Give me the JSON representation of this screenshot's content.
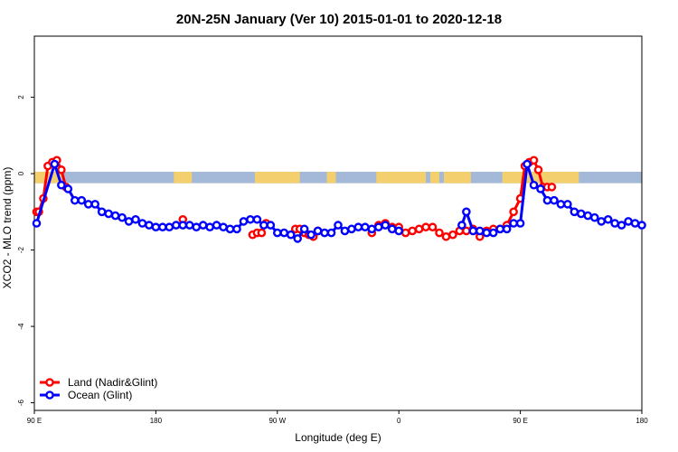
{
  "chart_data": {
    "type": "line",
    "title": "20N-25N January (Ver 10)   2015-01-01 to 2020-12-18",
    "xlabel": "Longitude (deg E)",
    "ylabel": "XCO2 - MLO trend (ppm)",
    "xlim": [
      -90,
      180
    ],
    "ylim": [
      -6.2,
      3.6
    ],
    "x_ticks": [
      {
        "value": -90,
        "label": "90 E"
      },
      {
        "value": -36,
        "label": "180"
      },
      {
        "value": 18,
        "label": "90 W"
      },
      {
        "value": 72,
        "label": "0"
      },
      {
        "value": 126,
        "label": "90 E"
      },
      {
        "value": 180,
        "label": "180"
      }
    ],
    "y_ticks": [
      {
        "value": 2,
        "label": "2"
      },
      {
        "value": 0,
        "label": "0"
      },
      {
        "value": -2,
        "label": "-2"
      },
      {
        "value": -4,
        "label": "-4"
      },
      {
        "value": -6,
        "label": "-6"
      }
    ],
    "grid": false,
    "legend_position": "bottom-left",
    "band": {
      "y_min": -0.25,
      "y_max": 0.05,
      "ocean_color": "#a4b9d8",
      "land_color": "#f3cf6e"
    },
    "series": [
      {
        "name": "Land (Nadir&Glint)",
        "color": "#ff0000",
        "x": [
          -89,
          -88,
          -86,
          -84,
          -82,
          -80,
          -78,
          -76,
          -24,
          7,
          9,
          11,
          13,
          26,
          28,
          30,
          32,
          34,
          36,
          60,
          63,
          66,
          69,
          72,
          75,
          78,
          81,
          84,
          87,
          90,
          93,
          96,
          99,
          102,
          105,
          108,
          111,
          114,
          117,
          120,
          123,
          126,
          128,
          130,
          132,
          134,
          136,
          138,
          140
        ],
        "y": [
          -1.0,
          -1.0,
          -0.65,
          0.2,
          0.3,
          0.35,
          0.1,
          -0.35,
          -1.2,
          -1.6,
          -1.55,
          -1.55,
          -1.3,
          -1.45,
          -1.45,
          -1.55,
          -1.6,
          -1.65,
          -1.5,
          -1.55,
          -1.35,
          -1.3,
          -1.4,
          -1.4,
          -1.55,
          -1.5,
          -1.45,
          -1.4,
          -1.4,
          -1.55,
          -1.65,
          -1.6,
          -1.5,
          -1.5,
          -1.45,
          -1.65,
          -1.5,
          -1.45,
          -1.45,
          -1.35,
          -1.0,
          -0.65,
          0.2,
          0.3,
          0.35,
          0.1,
          -0.35,
          -0.35,
          -0.35
        ]
      },
      {
        "name": "Ocean (Glint)",
        "color": "#0000ff",
        "x": [
          -89,
          -81,
          -78,
          -75,
          -72,
          -69,
          -66,
          -63,
          -60,
          -57,
          -54,
          -51,
          -48,
          -45,
          -42,
          -39,
          -36,
          -33,
          -30,
          -27,
          -24,
          -21,
          -18,
          -15,
          -12,
          -9,
          -6,
          -3,
          0,
          3,
          6,
          9,
          12,
          15,
          18,
          21,
          24,
          27,
          30,
          33,
          36,
          39,
          42,
          45,
          48,
          51,
          54,
          57,
          60,
          63,
          66,
          69,
          72,
          100,
          102,
          105,
          108,
          111,
          114,
          117,
          120,
          123,
          126,
          129,
          132,
          135,
          138,
          141,
          144,
          147,
          150,
          153,
          156,
          159,
          162,
          165,
          168,
          171,
          174,
          177,
          180
        ],
        "y": [
          -1.3,
          0.25,
          -0.3,
          -0.4,
          -0.7,
          -0.7,
          -0.8,
          -0.8,
          -1.0,
          -1.05,
          -1.1,
          -1.15,
          -1.25,
          -1.2,
          -1.3,
          -1.35,
          -1.4,
          -1.4,
          -1.4,
          -1.35,
          -1.35,
          -1.35,
          -1.4,
          -1.35,
          -1.4,
          -1.35,
          -1.4,
          -1.45,
          -1.45,
          -1.25,
          -1.2,
          -1.2,
          -1.35,
          -1.35,
          -1.55,
          -1.55,
          -1.6,
          -1.7,
          -1.45,
          -1.6,
          -1.5,
          -1.55,
          -1.55,
          -1.35,
          -1.5,
          -1.45,
          -1.4,
          -1.4,
          -1.45,
          -1.4,
          -1.35,
          -1.45,
          -1.5,
          -1.35,
          -1.0,
          -1.5,
          -1.5,
          -1.55,
          -1.55,
          -1.45,
          -1.45,
          -1.3,
          -1.3,
          0.25,
          -0.3,
          -0.4,
          -0.7,
          -0.7,
          -0.8,
          -0.8,
          -1.0,
          -1.05,
          -1.1,
          -1.15,
          -1.25,
          -1.2,
          -1.3,
          -1.35,
          -1.25,
          -1.3,
          -1.35
        ]
      }
    ]
  }
}
